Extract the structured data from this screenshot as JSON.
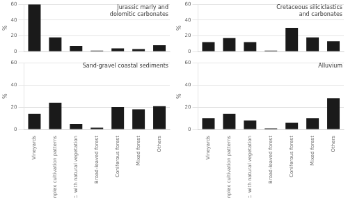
{
  "chart_data": [
    {
      "type": "bar",
      "title": "Jurassic marly and\ndolomitic carbonates",
      "ylabel": "%",
      "categories": [
        "Vineyards",
        "Complex cultivation patterns",
        "Agric. with natural vegetation",
        "Broad-leaved forest",
        "Coniferous forest",
        "Mixed forest",
        "Others"
      ],
      "values": [
        60,
        18,
        7,
        1,
        4,
        3,
        8
      ],
      "color": "#1a1a1a",
      "ylim": [
        0,
        60
      ],
      "yticks": [
        0,
        20,
        40,
        60
      ],
      "grid": true,
      "tick_labels": "y"
    },
    {
      "type": "bar",
      "title": "Cretaceous siliciclastics\nand carbonates",
      "ylabel": "%",
      "categories": [
        "Vineyards",
        "Complex cultivation patterns",
        "Agric. with natural vegetation",
        "Broad-leaved forest",
        "Coniferous forest",
        "Mixed forest",
        "Others"
      ],
      "values": [
        12,
        17,
        12,
        1,
        30,
        18,
        13
      ],
      "color": "#1a1a1a",
      "ylim": [
        0,
        60
      ],
      "yticks": [
        0,
        20,
        40,
        60
      ],
      "grid": true,
      "tick_labels": "y"
    },
    {
      "type": "bar",
      "title": "Sand-gravel coastal sediments",
      "ylabel": "%",
      "categories": [
        "Vineyards",
        "Complex cultivation patterns",
        "Agric. with natural vegetation",
        "Broad-leaved forest",
        "Coniferous forest",
        "Mixed forest",
        "Others"
      ],
      "values": [
        14,
        24,
        5,
        1.5,
        20,
        18,
        21
      ],
      "color": "#1a1a1a",
      "ylim": [
        0,
        60
      ],
      "yticks": [
        0,
        20,
        40,
        60
      ],
      "grid": true
    },
    {
      "type": "bar",
      "title": "Alluvium",
      "ylabel": "%",
      "categories": [
        "Vineyards",
        "Complex cultivation patterns",
        "Agric. with natural vegetation",
        "Broad-leaved forest",
        "Coniferous forest",
        "Mixed forest",
        "Others"
      ],
      "values": [
        10,
        14,
        8,
        1,
        6,
        10,
        28
      ],
      "color": "#1a1a1a",
      "ylim": [
        0,
        60
      ],
      "yticks": [
        0,
        20,
        40,
        60
      ],
      "grid": true
    }
  ]
}
